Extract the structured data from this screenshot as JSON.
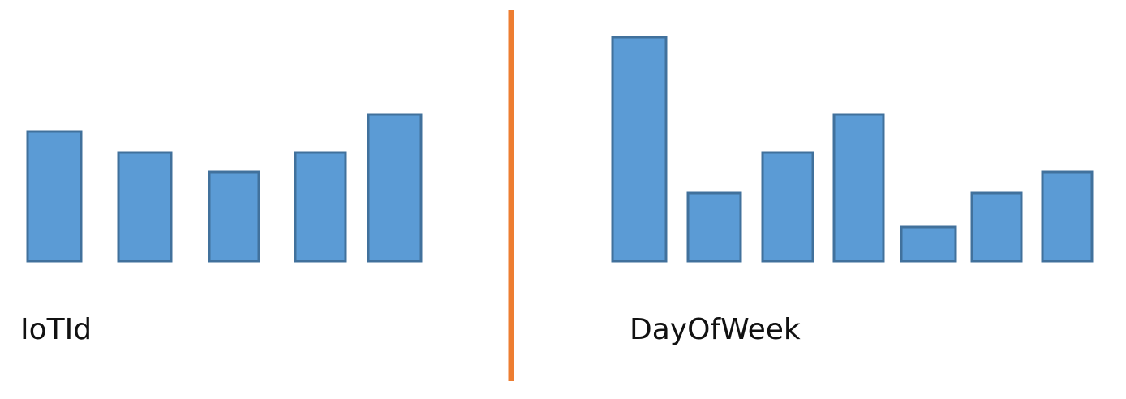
{
  "colors": {
    "bar_fill": "#5b9bd5",
    "bar_stroke": "#41719c",
    "divider": "#ed7d31",
    "label": "#111111"
  },
  "chart_data": [
    {
      "type": "bar",
      "title": "IoTId",
      "values": [
        160,
        134,
        110,
        134,
        181
      ],
      "ylim": [
        0,
        281
      ]
    },
    {
      "type": "bar",
      "title": "DayOfWeek",
      "values": [
        276,
        84,
        134,
        181,
        42,
        84,
        110
      ],
      "ylim": [
        0,
        281
      ]
    }
  ]
}
